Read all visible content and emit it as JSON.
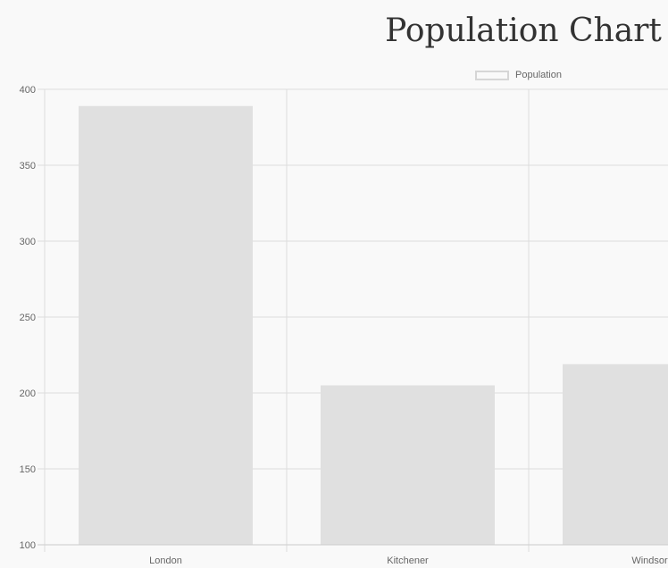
{
  "chart_data": {
    "type": "bar",
    "title": "Population Chart",
    "categories": [
      "London",
      "Kitchener",
      "Windsor"
    ],
    "series": [
      {
        "name": "Population",
        "values": [
          389,
          205,
          219
        ]
      }
    ],
    "xlabel": "",
    "ylabel": "",
    "ylim": [
      100,
      400
    ],
    "yticks": [
      "400",
      "350",
      "300",
      "250",
      "200",
      "150",
      "100"
    ],
    "grid": true,
    "legend_position": "top",
    "colors": {
      "bar_fill": "#e0e0e0",
      "legend_border": "#d6d6d6",
      "grid": "#dddddd",
      "text": "#666666",
      "title": "#333333",
      "background": "#f9f9f9"
    }
  }
}
